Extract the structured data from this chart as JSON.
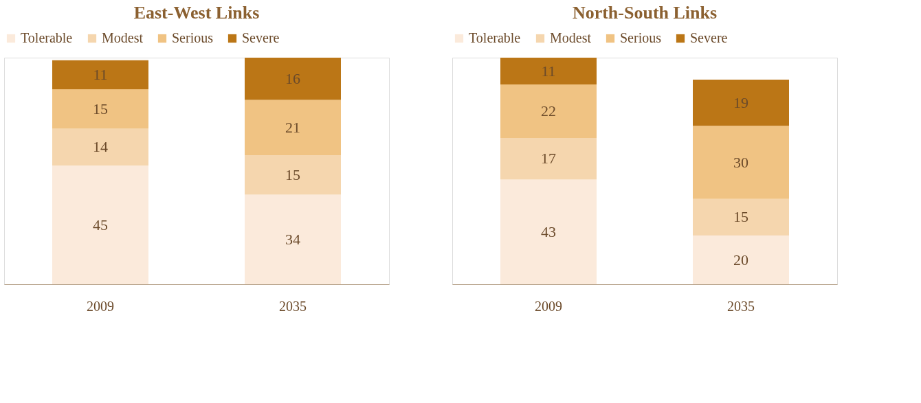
{
  "chart_data": [
    {
      "type": "bar",
      "title": "East-West Links",
      "categories": [
        "2009",
        "2035"
      ],
      "stacked": true,
      "data_labels": true,
      "legend": "top",
      "series": [
        {
          "name": "Tolerable",
          "color": "#fbeadb",
          "values": [
            45,
            34
          ]
        },
        {
          "name": "Modest",
          "color": "#f5d6ae",
          "values": [
            14,
            15
          ]
        },
        {
          "name": "Serious",
          "color": "#f0c383",
          "values": [
            15,
            21
          ]
        },
        {
          "name": "Severe",
          "color": "#bb7616",
          "values": [
            11,
            16
          ]
        }
      ]
    },
    {
      "type": "bar",
      "title": "North-South Links",
      "categories": [
        "2009",
        "2035"
      ],
      "stacked": true,
      "data_labels": true,
      "legend": "top",
      "series": [
        {
          "name": "Tolerable",
          "color": "#fbeadb",
          "values": [
            43,
            20
          ]
        },
        {
          "name": "Modest",
          "color": "#f5d6ae",
          "values": [
            17,
            15
          ]
        },
        {
          "name": "Serious",
          "color": "#f0c383",
          "values": [
            22,
            30
          ]
        },
        {
          "name": "Severe",
          "color": "#bb7616",
          "values": [
            11,
            19
          ]
        }
      ]
    }
  ]
}
